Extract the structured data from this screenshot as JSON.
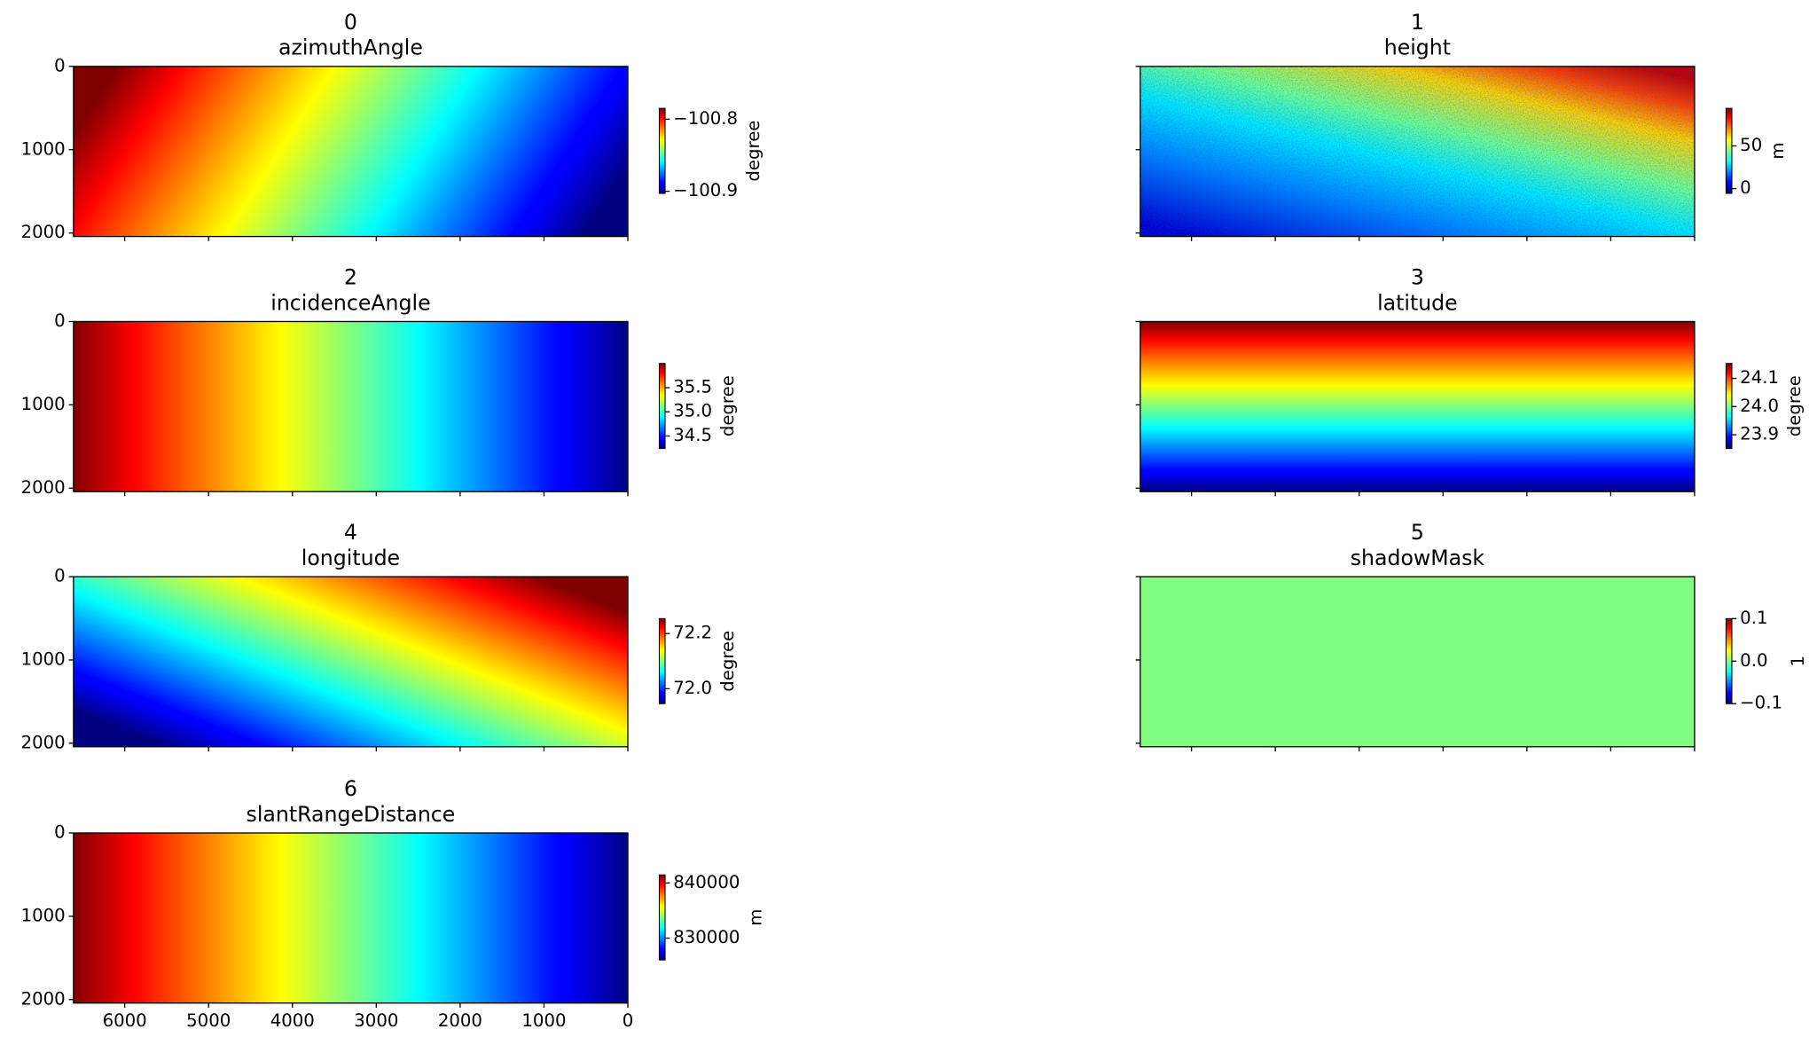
{
  "chart_data": [
    {
      "type": "heatmap",
      "title": "0",
      "subtitle": "azimuthAngle",
      "colormap": "jet",
      "xlim": [
        6611,
        0
      ],
      "ylim": [
        2042,
        0
      ],
      "xticks": [
        6000,
        5000,
        4000,
        3000,
        2000,
        1000,
        0
      ],
      "yticks": [
        0,
        1000,
        2000
      ],
      "show_xticklabels": false,
      "show_yticklabels": true,
      "clim": [
        -100.903,
        -100.785
      ],
      "cticks": [
        {
          "value": -100.8,
          "label": "−100.8"
        },
        {
          "value": -100.9,
          "label": "−100.9"
        }
      ],
      "colorbar_label": "degree"
    },
    {
      "type": "heatmap",
      "title": "1",
      "subtitle": "height",
      "colormap": "jet",
      "xlim": [
        6611,
        0
      ],
      "ylim": [
        2042,
        0
      ],
      "xticks": [
        6000,
        5000,
        4000,
        3000,
        2000,
        1000,
        0
      ],
      "yticks": [
        0,
        1000,
        2000
      ],
      "show_xticklabels": false,
      "show_yticklabels": false,
      "clim": [
        -5.6,
        94
      ],
      "cticks": [
        50,
        0
      ],
      "colorbar_label": "m"
    },
    {
      "type": "heatmap",
      "title": "2",
      "subtitle": "incidenceAngle",
      "colormap": "jet",
      "xlim": [
        6611,
        0
      ],
      "ylim": [
        2042,
        0
      ],
      "xticks": [
        6000,
        5000,
        4000,
        3000,
        2000,
        1000,
        0
      ],
      "yticks": [
        0,
        1000,
        2000
      ],
      "show_xticklabels": false,
      "show_yticklabels": true,
      "clim": [
        34.24,
        36.0
      ],
      "cticks": [
        35.5,
        {
          "value": 35.0,
          "label": "35.0"
        },
        34.5
      ],
      "colorbar_label": "degree"
    },
    {
      "type": "heatmap",
      "title": "3",
      "subtitle": "latitude",
      "colormap": "jet",
      "xlim": [
        6611,
        0
      ],
      "ylim": [
        2042,
        0
      ],
      "xticks": [
        6000,
        5000,
        4000,
        3000,
        2000,
        1000,
        0
      ],
      "yticks": [
        0,
        1000,
        2000
      ],
      "show_xticklabels": false,
      "show_yticklabels": false,
      "clim": [
        23.851,
        24.153
      ],
      "cticks": [
        24.1,
        {
          "value": 24.0,
          "label": "24.0"
        },
        23.9
      ],
      "colorbar_label": "degree"
    },
    {
      "type": "heatmap",
      "title": "4",
      "subtitle": "longitude",
      "colormap": "jet",
      "xlim": [
        6611,
        0
      ],
      "ylim": [
        2042,
        0
      ],
      "xticks": [
        6000,
        5000,
        4000,
        3000,
        2000,
        1000,
        0
      ],
      "yticks": [
        0,
        1000,
        2000
      ],
      "show_xticklabels": false,
      "show_yticklabels": true,
      "clim": [
        71.946,
        72.254
      ],
      "cticks": [
        72.2,
        {
          "value": 72.0,
          "label": "72.0"
        }
      ],
      "colorbar_label": "degree"
    },
    {
      "type": "heatmap",
      "title": "5",
      "subtitle": "shadowMask",
      "colormap": "jet",
      "xlim": [
        6611,
        0
      ],
      "ylim": [
        2042,
        0
      ],
      "xticks": [
        6000,
        5000,
        4000,
        3000,
        2000,
        1000,
        0
      ],
      "yticks": [
        0,
        1000,
        2000
      ],
      "show_xticklabels": false,
      "show_yticklabels": false,
      "clim": [
        -0.1,
        0.1
      ],
      "cticks": [
        0.1,
        {
          "value": 0.0,
          "label": "0.0"
        },
        {
          "value": -0.1,
          "label": "−0.1"
        }
      ],
      "colorbar_label": "1"
    },
    {
      "type": "heatmap",
      "title": "6",
      "subtitle": "slantRangeDistance",
      "colormap": "jet",
      "xlim": [
        6611,
        0
      ],
      "ylim": [
        2042,
        0
      ],
      "xticks": [
        6000,
        5000,
        4000,
        3000,
        2000,
        1000,
        0
      ],
      "yticks": [
        0,
        1000,
        2000
      ],
      "show_xticklabels": true,
      "show_yticklabels": true,
      "clim": [
        826042,
        841458
      ],
      "cticks": [
        840000,
        830000
      ],
      "colorbar_label": "m"
    }
  ]
}
